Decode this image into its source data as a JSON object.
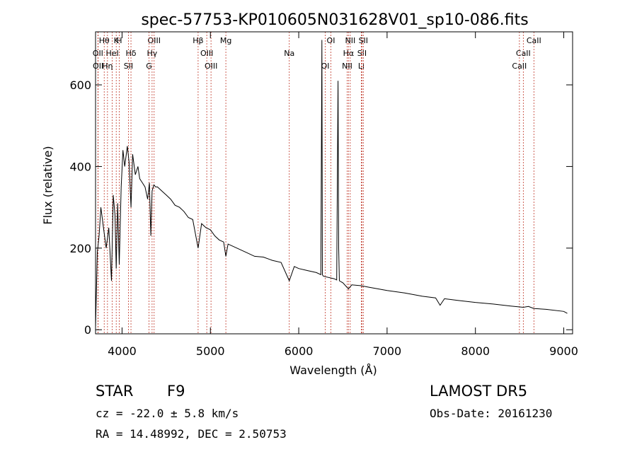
{
  "chart_data": {
    "type": "line",
    "title": "spec-57753-KP010605N031628V01_sp10-086.fits",
    "xlabel": "Wavelength (Å)",
    "ylabel": "Flux (relative)",
    "xlim": [
      3700,
      9100
    ],
    "ylim": [
      -10,
      730
    ],
    "xticks": [
      4000,
      5000,
      6000,
      7000,
      8000,
      9000
    ],
    "yticks": [
      0,
      200,
      400,
      600
    ],
    "grid": false,
    "series": [
      {
        "x": [
          3700,
          3720,
          3740,
          3760,
          3790,
          3820,
          3850,
          3880,
          3900,
          3920,
          3934,
          3950,
          3968,
          3990,
          4010,
          4030,
          4060,
          4080,
          4101,
          4120,
          4150,
          4180,
          4200,
          4230,
          4260,
          4290,
          4310,
          4326,
          4340,
          4360,
          4380,
          4400,
          4450,
          4500,
          4550,
          4600,
          4650,
          4700,
          4750,
          4800,
          4861,
          4900,
          4950,
          5000,
          5050,
          5100,
          5150,
          5175,
          5200,
          5300,
          5400,
          5500,
          5600,
          5700,
          5800,
          5893,
          5950,
          6000,
          6100,
          6200,
          6250,
          6262,
          6268,
          6275,
          6300,
          6400,
          6430,
          6445,
          6452,
          6460,
          6500,
          6563,
          6600,
          6700,
          6800,
          6900,
          7000,
          7200,
          7400,
          7550,
          7600,
          7650,
          7800,
          8000,
          8200,
          8400,
          8542,
          8600,
          8662,
          8800,
          9000,
          9040
        ],
        "y": [
          5,
          190,
          230,
          300,
          250,
          200,
          250,
          120,
          330,
          280,
          150,
          310,
          160,
          350,
          440,
          400,
          450,
          410,
          300,
          430,
          380,
          400,
          370,
          360,
          350,
          320,
          360,
          230,
          340,
          355,
          350,
          350,
          340,
          330,
          320,
          305,
          300,
          290,
          275,
          270,
          200,
          260,
          250,
          245,
          230,
          220,
          215,
          180,
          210,
          200,
          190,
          180,
          178,
          170,
          165,
          120,
          155,
          150,
          145,
          140,
          135,
          710,
          135,
          132,
          130,
          125,
          122,
          610,
          200,
          120,
          115,
          100,
          110,
          108,
          104,
          100,
          96,
          90,
          82,
          78,
          60,
          76,
          72,
          67,
          63,
          58,
          55,
          57,
          52,
          50,
          45,
          40
        ]
      }
    ],
    "line_markers": [
      {
        "label": "Hθ",
        "x": 3798
      },
      {
        "label": "OII",
        "x": 3727
      },
      {
        "label": "OII",
        "x": 3729
      },
      {
        "label": "K",
        "x": 3934
      },
      {
        "label": "HeI",
        "x": 3889
      },
      {
        "label": "Hη",
        "x": 3835
      },
      {
        "label": "H",
        "x": 3968
      },
      {
        "label": "Hδ",
        "x": 4101
      },
      {
        "label": "SII",
        "x": 4072
      },
      {
        "label": "OIII",
        "x": 4363
      },
      {
        "label": "Hγ",
        "x": 4340
      },
      {
        "label": "G",
        "x": 4305
      },
      {
        "label": "Hβ",
        "x": 4861
      },
      {
        "label": "OIII",
        "x": 4959
      },
      {
        "label": "OIII",
        "x": 5007
      },
      {
        "label": "Mg",
        "x": 5175
      },
      {
        "label": "Na",
        "x": 5893
      },
      {
        "label": "OI",
        "x": 6300
      },
      {
        "label": "OI",
        "x": 6364
      },
      {
        "label": "Hα",
        "x": 6563
      },
      {
        "label": "NII",
        "x": 6548
      },
      {
        "label": "NII",
        "x": 6583
      },
      {
        "label": "SII",
        "x": 6716
      },
      {
        "label": "Li",
        "x": 6708
      },
      {
        "label": "SII",
        "x": 6731
      },
      {
        "label": "CaII",
        "x": 8542
      },
      {
        "label": "CaII",
        "x": 8498
      },
      {
        "label": "CaII",
        "x": 8662
      }
    ]
  },
  "info": {
    "object_class": "STAR",
    "subclass": "F9",
    "survey": "LAMOST DR5",
    "redshift": "cz = -22.0 ± 5.8 km/s",
    "obs_date": "Obs-Date: 20161230",
    "coords": "RA =  14.48992, DEC =   2.50753"
  }
}
